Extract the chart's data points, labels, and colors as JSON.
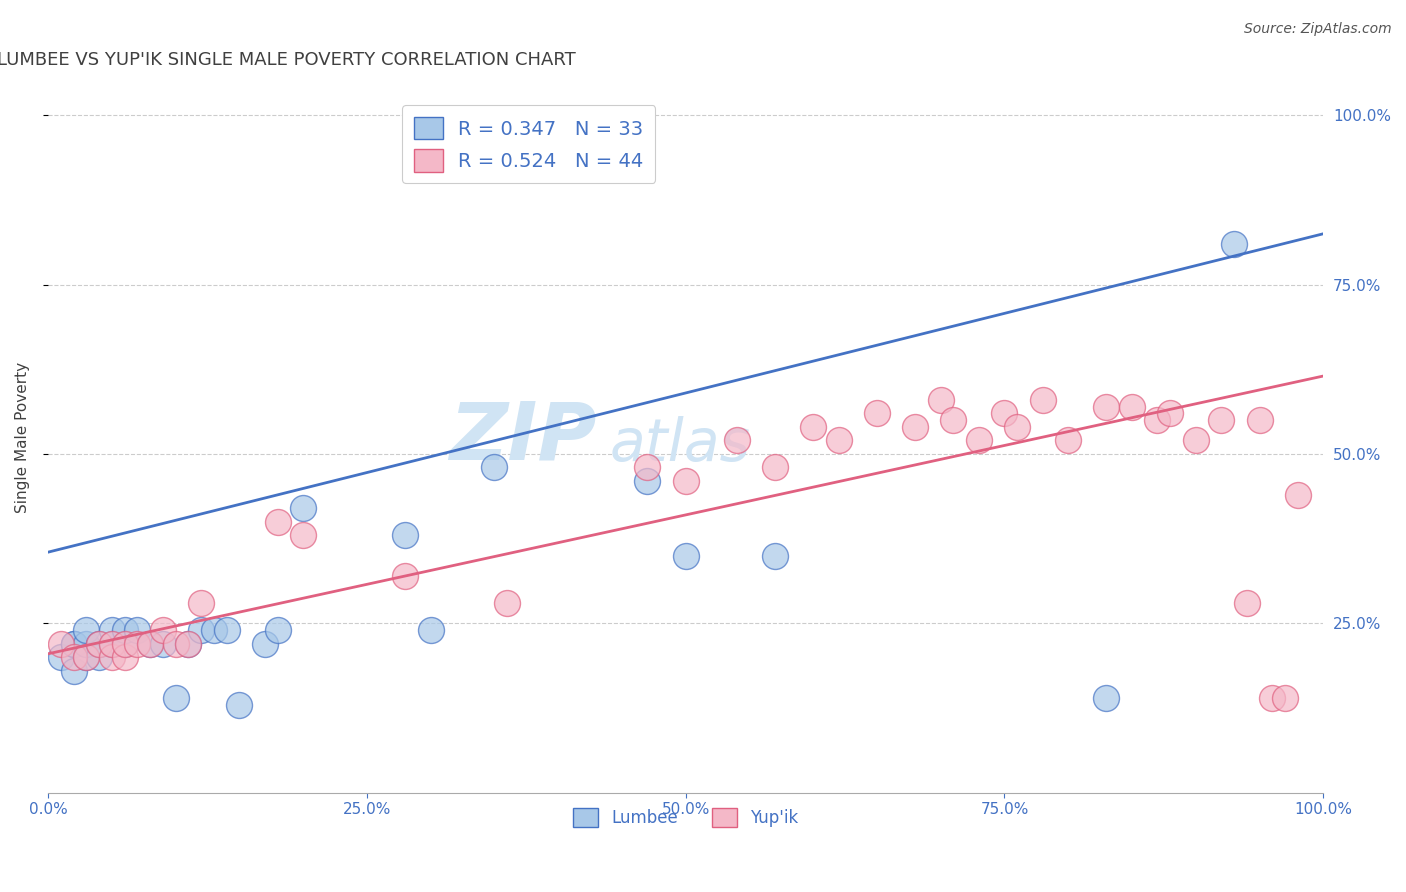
{
  "title": "LUMBEE VS YUP'IK SINGLE MALE POVERTY CORRELATION CHART",
  "source": "Source: ZipAtlas.com",
  "ylabel": "Single Male Poverty",
  "legend_label_blue": "Lumbee",
  "legend_label_pink": "Yup'ik",
  "R_blue": 0.347,
  "N_blue": 33,
  "R_pink": 0.524,
  "N_pink": 44,
  "xlim": [
    0.0,
    1.0
  ],
  "ylim": [
    0.0,
    1.05
  ],
  "xtick_labels": [
    "0.0%",
    "25.0%",
    "50.0%",
    "75.0%",
    "100.0%"
  ],
  "xtick_values": [
    0.0,
    0.25,
    0.5,
    0.75,
    1.0
  ],
  "ytick_values": [
    0.25,
    0.5,
    0.75,
    1.0
  ],
  "ytick_labels": [
    "25.0%",
    "50.0%",
    "75.0%",
    "100.0%"
  ],
  "color_blue": "#a8c8e8",
  "color_pink": "#f4b8c8",
  "color_line_blue": "#4472c4",
  "color_line_pink": "#e06080",
  "title_color": "#404040",
  "axis_label_color": "#404040",
  "tick_label_color": "#4472c4",
  "watermark_color": "#d0e4f4",
  "background_color": "#ffffff",
  "blue_line_x0": 0.0,
  "blue_line_y0": 0.355,
  "blue_line_x1": 1.0,
  "blue_line_y1": 0.825,
  "pink_line_x0": 0.0,
  "pink_line_y0": 0.205,
  "pink_line_x1": 1.0,
  "pink_line_y1": 0.615,
  "blue_x": [
    0.01,
    0.02,
    0.02,
    0.02,
    0.03,
    0.03,
    0.03,
    0.04,
    0.04,
    0.05,
    0.05,
    0.06,
    0.06,
    0.07,
    0.08,
    0.09,
    0.1,
    0.11,
    0.12,
    0.13,
    0.14,
    0.15,
    0.17,
    0.18,
    0.2,
    0.28,
    0.3,
    0.35,
    0.47,
    0.5,
    0.57,
    0.83,
    0.93
  ],
  "blue_y": [
    0.2,
    0.18,
    0.22,
    0.22,
    0.2,
    0.22,
    0.24,
    0.2,
    0.22,
    0.22,
    0.24,
    0.22,
    0.24,
    0.24,
    0.22,
    0.22,
    0.14,
    0.22,
    0.24,
    0.24,
    0.24,
    0.13,
    0.22,
    0.24,
    0.42,
    0.38,
    0.24,
    0.48,
    0.46,
    0.35,
    0.35,
    0.14,
    0.81
  ],
  "pink_x": [
    0.01,
    0.02,
    0.03,
    0.04,
    0.05,
    0.05,
    0.06,
    0.06,
    0.07,
    0.08,
    0.09,
    0.1,
    0.11,
    0.12,
    0.18,
    0.2,
    0.28,
    0.36,
    0.47,
    0.5,
    0.54,
    0.57,
    0.6,
    0.62,
    0.65,
    0.68,
    0.7,
    0.71,
    0.73,
    0.75,
    0.76,
    0.78,
    0.8,
    0.83,
    0.85,
    0.87,
    0.88,
    0.9,
    0.92,
    0.94,
    0.95,
    0.96,
    0.97,
    0.98
  ],
  "pink_y": [
    0.22,
    0.2,
    0.2,
    0.22,
    0.2,
    0.22,
    0.2,
    0.22,
    0.22,
    0.22,
    0.24,
    0.22,
    0.22,
    0.28,
    0.4,
    0.38,
    0.32,
    0.28,
    0.48,
    0.46,
    0.52,
    0.48,
    0.54,
    0.52,
    0.56,
    0.54,
    0.58,
    0.55,
    0.52,
    0.56,
    0.54,
    0.58,
    0.52,
    0.57,
    0.57,
    0.55,
    0.56,
    0.52,
    0.55,
    0.28,
    0.55,
    0.14,
    0.14,
    0.44
  ]
}
